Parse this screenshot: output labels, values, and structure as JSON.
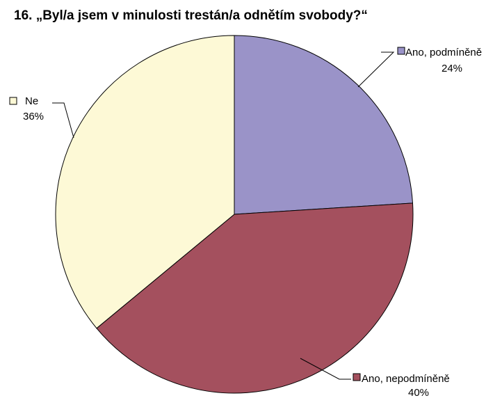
{
  "chart_data": {
    "type": "pie",
    "title": "16. „Byl/a jsem v minulosti trestán/a odnětím svobody?“",
    "slices": [
      {
        "label": "Ano, podmíněně",
        "value": 24,
        "percent_label": "24%",
        "color": "#9a93c8"
      },
      {
        "label": "Ano, nepodmíněně",
        "value": 40,
        "percent_label": "40%",
        "color": "#a4505e"
      },
      {
        "label": "Ne",
        "value": 36,
        "percent_label": "36%",
        "color": "#fdf9d6"
      }
    ],
    "start_angle_deg": 0,
    "direction": "clockwise",
    "legend": "none"
  }
}
